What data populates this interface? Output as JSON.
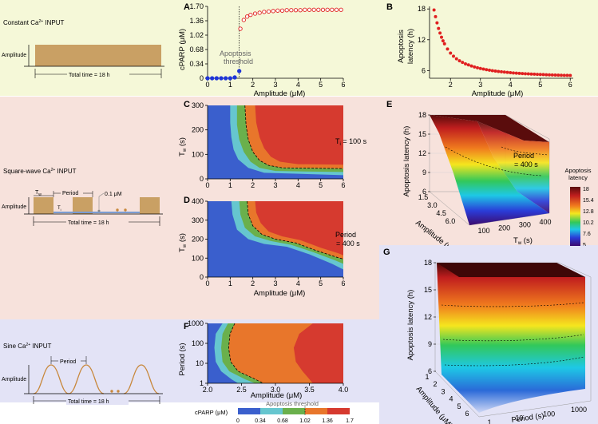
{
  "figure": {
    "sections": {
      "constant": {
        "title": "Constant Ca",
        "sup": "2+",
        "suffix": " INPUT",
        "amplitude_label": "Amplitude",
        "total_time": "Total time = 18 h"
      },
      "square": {
        "title": "Square-wave Ca",
        "sup": "2+",
        "suffix": " INPUT",
        "amplitude_label": "Amplitude",
        "total_time": "Total time = 18 h",
        "period_label": "Period",
        "tw_label": "T",
        "tw_sub": "w",
        "ti_label": "T",
        "ti_sub": "i",
        "baseline_label": "0.1 μM"
      },
      "sine": {
        "title": "Sine Ca",
        "sup": "2+",
        "suffix": " INPUT",
        "amplitude_label": "Amplitude",
        "total_time": "Total time = 18 h",
        "period_label": "Period"
      }
    },
    "colors": {
      "yellow_band": "#f5f8d8",
      "pink_band": "#f7e2dc",
      "blue_band": "#e3e3f6",
      "wave_fill": "#c9a064",
      "wave_stroke": "#c8883c"
    },
    "panels": {
      "A": {
        "letter": "A",
        "xlabel": "Amplitude (μM)",
        "ylabel": "cPARP (μM)",
        "xticks": [
          "0",
          "1",
          "2",
          "3",
          "4",
          "5",
          "6"
        ],
        "yticks": [
          "0",
          "0.34",
          "0.68",
          "1.02",
          "1.36",
          "1.70"
        ],
        "annotation_line1": "Apoptosis",
        "annotation_line2": "threshold"
      },
      "B": {
        "letter": "B",
        "xlabel": "Amplitude (μM)",
        "ylabel_line1": "Apoptosis",
        "ylabel_line2": "latency (h)",
        "xticks": [
          "2",
          "3",
          "4",
          "5",
          "6"
        ],
        "yticks": [
          "6",
          "12",
          "18"
        ]
      },
      "C": {
        "letter": "C",
        "xlabel": "",
        "ylabel": "T",
        "ylabel_sub": "w",
        "ylabel_unit": " (s)",
        "xticks": [
          "0",
          "1",
          "2",
          "3",
          "4",
          "5",
          "6"
        ],
        "yticks": [
          "0",
          "100",
          "200",
          "300"
        ],
        "note_pre": "T",
        "note_sub": "i",
        "note_post": " = 100 s"
      },
      "D": {
        "letter": "D",
        "xlabel": "Amplitude (μM)",
        "ylabel": "T",
        "ylabel_sub": "w",
        "ylabel_unit": " (s)",
        "xticks": [
          "0",
          "1",
          "2",
          "3",
          "4",
          "5",
          "6"
        ],
        "yticks": [
          "0",
          "100",
          "200",
          "300",
          "400"
        ],
        "note_line1": "Period",
        "note_line2": "= 400 s"
      },
      "E": {
        "letter": "E",
        "zlabel": "Apoptosis latency (h)",
        "xlabel": "Amplitude (μM)",
        "ylabel": "T",
        "ylabel_sub": "w",
        "ylabel_unit": " (s)",
        "zticks": [
          "6",
          "9",
          "12",
          "15",
          "18"
        ],
        "xticks": [
          "1.5",
          "3.0",
          "4.5",
          "6.0"
        ],
        "yticks": [
          "100",
          "200",
          "300",
          "400"
        ],
        "note_line1": "Period",
        "note_line2": "= 400 s"
      },
      "F": {
        "letter": "F",
        "xlabel": "Amplitude (μM)",
        "ylabel": "Period (s)",
        "xticks": [
          "2.0",
          "2.5",
          "3.0",
          "3.5",
          "4.0"
        ],
        "yticks": [
          "1",
          "10",
          "100",
          "1000"
        ]
      },
      "G": {
        "letter": "G",
        "zlabel": "Apoptosis latency (h)",
        "xlabel": "Amplitude (μM)",
        "ylabel": "Period (s)",
        "zticks": [
          "6",
          "9",
          "12",
          "15",
          "18"
        ],
        "xticks": [
          "1",
          "2",
          "3",
          "4",
          "5",
          "6"
        ],
        "yticks": [
          "1",
          "10",
          "100",
          "1000"
        ]
      }
    },
    "colorbar_latency": {
      "title_line1": "Apoptosis",
      "title_line2": "latency",
      "ticks": [
        "18",
        "15.4",
        "12.8",
        "10.2",
        "7.6",
        "5"
      ]
    },
    "colorbar_cparp": {
      "label": "cPARP (μM)",
      "title": "Apoptosis threshold",
      "ticks": [
        "0",
        "0.34",
        "0.68",
        "1.02",
        "1.36",
        "1.7"
      ],
      "colors": [
        "#3a5fcd",
        "#66c6cf",
        "#6ab04c",
        "#e8762b",
        "#d63a2f"
      ]
    }
  },
  "chart_data": [
    {
      "type": "scatter",
      "panel": "A",
      "title": "",
      "xlabel": "Amplitude (μM)",
      "ylabel": "cPARP (μM)",
      "xlim": [
        0,
        6
      ],
      "ylim": [
        0,
        1.7
      ],
      "series": [
        {
          "name": "below threshold",
          "color": "#1f35d8",
          "x": [
            0,
            0.2,
            0.4,
            0.6,
            0.8,
            1.0,
            1.2,
            1.4
          ],
          "y": [
            0,
            0,
            0,
            0,
            0,
            0,
            0.02,
            0.17
          ]
        },
        {
          "name": "above threshold",
          "color": "#e02020",
          "x": [
            1.45,
            1.6,
            1.75,
            1.9,
            2.1,
            2.3,
            2.5,
            2.7,
            2.9,
            3.1,
            3.3,
            3.5,
            3.7,
            3.9,
            4.1,
            4.3,
            4.5,
            4.7,
            4.9,
            5.1,
            5.3,
            5.5,
            5.7,
            5.9
          ],
          "y": [
            1.17,
            1.38,
            1.46,
            1.5,
            1.53,
            1.55,
            1.57,
            1.58,
            1.59,
            1.6,
            1.6,
            1.61,
            1.61,
            1.61,
            1.61,
            1.62,
            1.62,
            1.62,
            1.62,
            1.62,
            1.62,
            1.62,
            1.62,
            1.62
          ]
        }
      ],
      "threshold_x": 1.4
    },
    {
      "type": "scatter",
      "panel": "B",
      "title": "",
      "xlabel": "Amplitude (μM)",
      "ylabel": "Apoptosis latency (h)",
      "xlim": [
        1.3,
        6.1
      ],
      "ylim": [
        4.5,
        18.5
      ],
      "series": [
        {
          "name": "latency",
          "color": "#e02020",
          "x": [
            1.45,
            1.5,
            1.55,
            1.6,
            1.65,
            1.7,
            1.75,
            1.8,
            1.9,
            2.0,
            2.1,
            2.2,
            2.3,
            2.4,
            2.5,
            2.6,
            2.7,
            2.8,
            2.9,
            3.0,
            3.1,
            3.2,
            3.3,
            3.4,
            3.5,
            3.6,
            3.7,
            3.8,
            3.9,
            4.0,
            4.1,
            4.2,
            4.3,
            4.4,
            4.5,
            4.6,
            4.7,
            4.8,
            4.9,
            5.0,
            5.1,
            5.2,
            5.3,
            5.4,
            5.5,
            5.6,
            5.7,
            5.8,
            5.9,
            6.0
          ],
          "y": [
            17.8,
            16.5,
            15.3,
            14.2,
            13.3,
            12.5,
            11.8,
            11.2,
            10.2,
            9.4,
            8.8,
            8.3,
            7.9,
            7.6,
            7.3,
            7.1,
            6.9,
            6.7,
            6.55,
            6.4,
            6.28,
            6.17,
            6.07,
            5.98,
            5.9,
            5.83,
            5.76,
            5.7,
            5.64,
            5.59,
            5.54,
            5.5,
            5.46,
            5.42,
            5.38,
            5.35,
            5.32,
            5.29,
            5.26,
            5.23,
            5.21,
            5.19,
            5.17,
            5.15,
            5.13,
            5.11,
            5.09,
            5.07,
            5.06,
            5.05
          ]
        }
      ]
    },
    {
      "type": "heatmap",
      "panel": "C",
      "xlabel": "",
      "ylabel": "Tw (s)",
      "xlim": [
        0,
        6
      ],
      "ylim": [
        0,
        300
      ],
      "levels": [
        0,
        0.34,
        0.68,
        1.02,
        1.36,
        1.7
      ],
      "boundaries": [
        {
          "level": 0.34,
          "x": [
            1.0,
            1.0,
            1.05,
            1.15,
            1.35,
            1.8,
            2.5,
            6.0
          ],
          "y": [
            300,
            230,
            170,
            120,
            80,
            45,
            25,
            15
          ]
        },
        {
          "level": 0.68,
          "x": [
            1.3,
            1.3,
            1.4,
            1.6,
            1.9,
            2.3,
            3.0,
            6.0
          ],
          "y": [
            300,
            220,
            160,
            110,
            70,
            45,
            32,
            28
          ]
        },
        {
          "level": 1.02,
          "x": [
            1.65,
            1.7,
            1.8,
            2.0,
            2.3,
            2.7,
            3.3,
            6.0
          ],
          "y": [
            300,
            220,
            160,
            110,
            75,
            55,
            45,
            42
          ]
        },
        {
          "level": 1.36,
          "x": [
            2.1,
            2.15,
            2.3,
            2.5,
            2.8,
            3.2,
            4.0,
            6.0
          ],
          "y": [
            300,
            230,
            170,
            125,
            90,
            70,
            60,
            58
          ]
        }
      ]
    },
    {
      "type": "heatmap",
      "panel": "D",
      "xlabel": "Amplitude (μM)",
      "ylabel": "Tw (s)",
      "xlim": [
        0,
        6
      ],
      "ylim": [
        0,
        400
      ],
      "levels": [
        0,
        0.34,
        0.68,
        1.02,
        1.36,
        1.7
      ],
      "boundaries": [
        {
          "level": 0.34,
          "x": [
            1.05,
            1.1,
            1.3,
            1.8,
            2.5,
            3.5,
            4.5,
            5.5,
            6.0
          ],
          "y": [
            400,
            330,
            250,
            200,
            175,
            160,
            120,
            70,
            40
          ]
        },
        {
          "level": 0.68,
          "x": [
            1.4,
            1.45,
            1.65,
            2.1,
            2.8,
            3.7,
            4.7,
            5.6,
            6.0
          ],
          "y": [
            400,
            330,
            260,
            215,
            190,
            170,
            130,
            90,
            70
          ]
        },
        {
          "level": 1.02,
          "x": [
            1.75,
            1.8,
            2.0,
            2.4,
            3.0,
            3.9,
            4.8,
            5.7,
            6.0
          ],
          "y": [
            400,
            330,
            270,
            225,
            200,
            180,
            140,
            105,
            95
          ]
        },
        {
          "level": 1.36,
          "x": [
            2.1,
            2.15,
            2.35,
            2.7,
            3.3,
            4.1,
            5.0,
            5.8,
            6.0
          ],
          "y": [
            400,
            340,
            285,
            240,
            215,
            195,
            155,
            125,
            115
          ]
        }
      ]
    },
    {
      "type": "heatmap",
      "panel": "F",
      "xlabel": "Amplitude (μM)",
      "ylabel": "Period (s)",
      "xlim": [
        2.0,
        4.0
      ],
      "ylim": [
        1,
        1000
      ],
      "yscale": "log",
      "levels": [
        0,
        0.34,
        0.68,
        1.02,
        1.36,
        1.7
      ],
      "boundaries": [
        {
          "level": 0.34,
          "x": [
            2.22,
            2.12,
            2.1,
            2.12,
            2.2,
            2.35,
            2.45
          ],
          "y": [
            1000,
            300,
            60,
            12,
            4,
            1.6,
            1
          ]
        },
        {
          "level": 0.68,
          "x": [
            2.3,
            2.22,
            2.2,
            2.22,
            2.32,
            2.55,
            2.7
          ],
          "y": [
            1000,
            300,
            60,
            12,
            4,
            1.6,
            1
          ]
        },
        {
          "level": 1.02,
          "x": [
            2.4,
            2.33,
            2.31,
            2.34,
            2.45,
            2.7,
            2.82
          ],
          "y": [
            1000,
            300,
            60,
            12,
            4,
            1.6,
            1
          ]
        },
        {
          "level": 1.36,
          "x": [
            3.55,
            3.35,
            3.27,
            3.3,
            3.4,
            3.5,
            3.55
          ],
          "y": [
            1000,
            300,
            60,
            12,
            4,
            1.6,
            1
          ]
        }
      ]
    },
    {
      "type": "surface",
      "panel": "E",
      "xlabel": "Amplitude (μM)",
      "ylabel": "Tw (s)",
      "zlabel": "Apoptosis latency (h)",
      "xlim": [
        1.5,
        6.0
      ],
      "ylim": [
        100,
        400
      ],
      "zlim": [
        5,
        18
      ]
    },
    {
      "type": "surface",
      "panel": "G",
      "xlabel": "Amplitude (μM)",
      "ylabel": "Period (s)",
      "zlabel": "Apoptosis latency (h)",
      "xlim": [
        1,
        6
      ],
      "ylim": [
        1,
        1000
      ],
      "zlim": [
        5,
        18
      ]
    }
  ]
}
